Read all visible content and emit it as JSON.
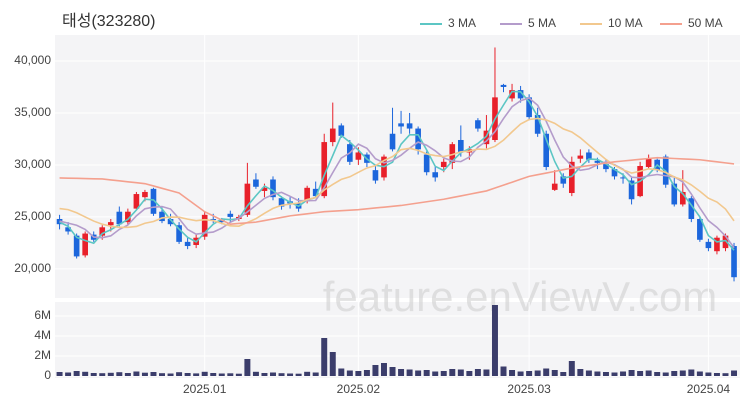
{
  "chart_data": [
    {
      "type": "candlestick",
      "title": "태성(323280)",
      "watermark": "feature.enViewV.com",
      "up_color": "#e8202a",
      "down_color": "#1c66dc",
      "open": [
        24800,
        24000,
        23200,
        21300,
        23300,
        23200,
        24200,
        25500,
        24500,
        25800,
        26900,
        27700,
        25500,
        24800,
        24200,
        22600,
        22300,
        23100,
        24800,
        24700,
        25300,
        24800,
        25200,
        28600,
        27500,
        28600,
        26800,
        26500,
        26300,
        26500,
        27700,
        27000,
        32200,
        33800,
        32000,
        30500,
        31000,
        29500,
        28800,
        33000,
        34000,
        34000,
        33500,
        31000,
        29300,
        29800,
        30200,
        32400,
        31200,
        34300,
        32000,
        32400,
        37700,
        36400,
        37200,
        36500,
        34800,
        33000,
        27600,
        28900,
        27300,
        30600,
        31200,
        30400,
        30100,
        29600,
        28800,
        28500,
        27000,
        29800,
        30500,
        30800,
        28200,
        26200,
        26800,
        24800,
        22600,
        21700,
        22000,
        22200
      ],
      "high": [
        25200,
        24500,
        23400,
        23600,
        23600,
        24200,
        24800,
        26000,
        25800,
        27400,
        27600,
        27800,
        25900,
        25300,
        24500,
        23000,
        23300,
        25500,
        25300,
        24900,
        25600,
        25200,
        30200,
        29200,
        28200,
        28900,
        27000,
        26900,
        26800,
        28000,
        28400,
        33000,
        36000,
        34000,
        32400,
        31700,
        31200,
        30000,
        31000,
        35500,
        35200,
        35000,
        33700,
        31300,
        29800,
        30600,
        32200,
        33800,
        31800,
        34500,
        34800,
        41300,
        37800,
        37800,
        37600,
        36800,
        35500,
        33300,
        29500,
        29200,
        30800,
        31500,
        31500,
        30700,
        30500,
        29800,
        29200,
        28900,
        30300,
        31000,
        30600,
        31000,
        28800,
        29500,
        27000,
        25000,
        22900,
        23200,
        23400,
        22500
      ],
      "low": [
        23800,
        23300,
        21000,
        21100,
        22600,
        22800,
        23600,
        24100,
        24200,
        25700,
        26500,
        25100,
        24400,
        24100,
        22400,
        21900,
        22000,
        22800,
        24400,
        24300,
        24500,
        24600,
        25000,
        27700,
        26900,
        26600,
        25700,
        25800,
        25500,
        26300,
        26800,
        26800,
        31800,
        32600,
        30000,
        30000,
        29800,
        28200,
        28500,
        31300,
        33000,
        33000,
        31000,
        29000,
        28400,
        29300,
        29600,
        30800,
        30500,
        33200,
        31600,
        32200,
        37000,
        36100,
        36000,
        34300,
        32700,
        29500,
        27500,
        27800,
        27000,
        30200,
        30200,
        29600,
        29300,
        28600,
        28200,
        26200,
        26900,
        29600,
        29300,
        27800,
        26000,
        26000,
        24500,
        22600,
        21700,
        21400,
        21700,
        18800
      ],
      "close": [
        24300,
        23600,
        21200,
        23400,
        22800,
        24000,
        24500,
        24300,
        25500,
        27200,
        27400,
        25300,
        24600,
        24300,
        22600,
        22200,
        23000,
        25200,
        24700,
        24500,
        25000,
        25000,
        28200,
        27900,
        27800,
        26900,
        26000,
        26300,
        25800,
        27800,
        27000,
        32200,
        33500,
        32800,
        30300,
        31200,
        30200,
        28500,
        30800,
        31500,
        33700,
        33500,
        31500,
        29300,
        28800,
        30300,
        32000,
        31200,
        31500,
        33500,
        33300,
        36500,
        37500,
        37200,
        36400,
        34600,
        33000,
        29800,
        28200,
        28200,
        30300,
        30900,
        30500,
        30200,
        29600,
        28900,
        28700,
        26700,
        29900,
        30600,
        29500,
        28100,
        26200,
        27400,
        24800,
        22800,
        22000,
        23000,
        23200,
        19200
      ],
      "series": [
        {
          "name": "3 MA",
          "color": "#5cc6c4",
          "values": [
            24500,
            24100,
            23033,
            22733,
            22467,
            23400,
            23767,
            24267,
            24767,
            25667,
            26700,
            26633,
            25767,
            24733,
            23833,
            23033,
            22600,
            23467,
            24300,
            24800,
            24733,
            24833,
            26067,
            27033,
            27967,
            27533,
            26900,
            26400,
            26033,
            26633,
            26867,
            29000,
            30900,
            32833,
            32200,
            31433,
            30567,
            29967,
            29833,
            30267,
            32000,
            32900,
            32900,
            31433,
            29867,
            29467,
            30367,
            31167,
            31567,
            32067,
            32767,
            34433,
            35767,
            37067,
            37033,
            36067,
            34667,
            32467,
            30333,
            28733,
            28900,
            29800,
            30567,
            30533,
            30100,
            29567,
            29067,
            28100,
            28433,
            29067,
            30000,
            29400,
            27933,
            27233,
            26133,
            25000,
            23200,
            22600,
            22733,
            21800
          ]
        },
        {
          "name": "5 MA",
          "color": "#b49ccb",
          "values": [
            24600,
            24400,
            24200,
            23800,
            23060,
            23000,
            23180,
            23800,
            24220,
            25100,
            25780,
            25940,
            26000,
            25760,
            24840,
            23800,
            23340,
            23460,
            23540,
            23920,
            24480,
            24880,
            25480,
            26120,
            26780,
            27160,
            27360,
            26980,
            26560,
            26560,
            26580,
            27820,
            29260,
            30660,
            31160,
            32000,
            31600,
            30600,
            30200,
            30440,
            30940,
            31600,
            32200,
            31900,
            31360,
            30680,
            30380,
            30320,
            30760,
            31700,
            32300,
            33200,
            34460,
            35600,
            36180,
            36440,
            35740,
            34200,
            32400,
            30760,
            29900,
            29480,
            29620,
            30020,
            30300,
            30020,
            29580,
            28820,
            28760,
            28960,
            29080,
            28960,
            28860,
            28360,
            27200,
            25860,
            24640,
            24000,
            23160,
            22040
          ]
        },
        {
          "name": "10 MA",
          "color": "#f2c88e",
          "values": [
            25800,
            25700,
            25400,
            25000,
            24600,
            24300,
            24100,
            24000,
            24000,
            24080,
            24390,
            24560,
            24900,
            24990,
            24970,
            24790,
            24640,
            24730,
            24650,
            24380,
            24140,
            24110,
            24470,
            24830,
            25350,
            25820,
            26120,
            26230,
            26340,
            26670,
            26870,
            27590,
            28120,
            28610,
            28860,
            29290,
            29710,
            29930,
            30430,
            30800,
            31470,
            31600,
            31400,
            31050,
            30900,
            30810,
            30990,
            31260,
            31330,
            31530,
            31490,
            31790,
            32390,
            33180,
            33940,
            34370,
            34470,
            34330,
            34000,
            33470,
            33170,
            32610,
            31910,
            31210,
            30530,
            29960,
            29530,
            29220,
            29390,
            29630,
            29550,
            29270,
            28840,
            28560,
            28080,
            27470,
            26800,
            26430,
            25760,
            24620
          ]
        },
        {
          "name": "50 MA",
          "color": "#f4a08e",
          "values": [
            28750,
            28730,
            28710,
            28690,
            28670,
            28650,
            28560,
            28470,
            28380,
            28290,
            28200,
            27980,
            27750,
            27530,
            27300,
            26700,
            26100,
            25500,
            25100,
            24700,
            24300,
            24370,
            24430,
            24500,
            24650,
            24800,
            24950,
            25100,
            25200,
            25300,
            25400,
            25500,
            25550,
            25600,
            25650,
            25700,
            25780,
            25860,
            25940,
            26020,
            26100,
            26220,
            26340,
            26460,
            26580,
            26700,
            26860,
            27020,
            27180,
            27340,
            27500,
            27780,
            28060,
            28340,
            28620,
            28900,
            29060,
            29220,
            29380,
            29540,
            29700,
            29820,
            29940,
            30060,
            30180,
            30300,
            30380,
            30460,
            30540,
            30620,
            30700,
            30660,
            30620,
            30580,
            30540,
            30500,
            30400,
            30300,
            30200,
            30100
          ]
        }
      ],
      "ylim": [
        17200,
        42500
      ],
      "yticks": [
        {
          "value": 20000,
          "label": "20,000"
        },
        {
          "value": 25000,
          "label": "25,000"
        },
        {
          "value": 30000,
          "label": "30,000"
        },
        {
          "value": 35000,
          "label": "35,000"
        },
        {
          "value": 40000,
          "label": "40,000"
        }
      ],
      "grid": true,
      "legend": "top-right"
    },
    {
      "type": "bar",
      "color": "#3b3d6b",
      "categories": [
        null,
        null,
        null,
        null,
        null,
        null,
        null,
        null,
        null,
        null,
        null,
        null,
        null,
        null,
        null,
        null,
        null,
        "2025.01",
        null,
        null,
        null,
        null,
        null,
        null,
        null,
        null,
        null,
        null,
        null,
        null,
        null,
        null,
        null,
        null,
        null,
        "2025.02",
        null,
        null,
        null,
        null,
        null,
        null,
        null,
        null,
        null,
        null,
        null,
        null,
        null,
        null,
        null,
        null,
        null,
        null,
        null,
        "2025.03",
        null,
        null,
        null,
        null,
        null,
        null,
        null,
        null,
        null,
        null,
        null,
        null,
        null,
        null,
        null,
        null,
        null,
        null,
        null,
        null,
        "2025.04",
        null,
        null,
        null
      ],
      "values": [
        400000,
        350000,
        500000,
        420000,
        300000,
        280000,
        320000,
        380000,
        300000,
        450000,
        330000,
        400000,
        280000,
        250000,
        380000,
        300000,
        260000,
        420000,
        300000,
        250000,
        270000,
        230000,
        1700000,
        420000,
        300000,
        350000,
        280000,
        250000,
        230000,
        420000,
        350000,
        3800000,
        2400000,
        750000,
        550000,
        500000,
        600000,
        1100000,
        1300000,
        900000,
        700000,
        650000,
        550000,
        600000,
        450000,
        500000,
        700000,
        650000,
        500000,
        700000,
        650000,
        7100000,
        950000,
        600000,
        450000,
        500000,
        550000,
        750000,
        600000,
        400000,
        1500000,
        700000,
        550000,
        450000,
        400000,
        350000,
        450000,
        600000,
        500000,
        550000,
        400000,
        350000,
        500000,
        550000,
        650000,
        450000,
        350000,
        300000,
        280000,
        550000
      ],
      "ylim": [
        0,
        7400000
      ],
      "yticks": [
        0,
        {
          "value": 2000000,
          "label": "2M"
        },
        {
          "value": 4000000,
          "label": "4M"
        },
        {
          "value": 6000000,
          "label": "6M"
        }
      ],
      "grid": true
    }
  ]
}
